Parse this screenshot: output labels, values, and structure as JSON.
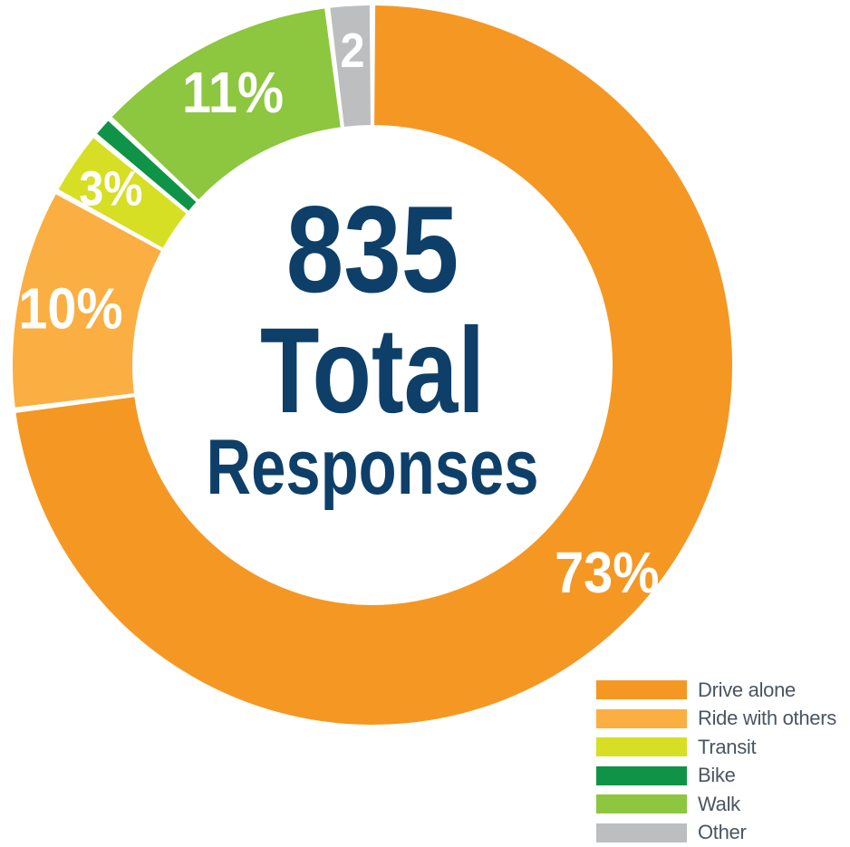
{
  "chart_data": {
    "type": "pie",
    "donut": true,
    "categories": [
      "Drive alone",
      "Ride with others",
      "Transit",
      "Bike",
      "Walk",
      "Other"
    ],
    "values": [
      73,
      10,
      3,
      1,
      11,
      2
    ],
    "value_labels": [
      "73%",
      "10%",
      "3%",
      "",
      "11%",
      "2"
    ],
    "colors": [
      "#f59723",
      "#fbae42",
      "#d6df23",
      "#0f9347",
      "#8dc63f",
      "#bcbec0"
    ],
    "center_number": "835",
    "center_line1": "Total",
    "center_line2": "Responses",
    "legend_position": "bottom-right"
  }
}
